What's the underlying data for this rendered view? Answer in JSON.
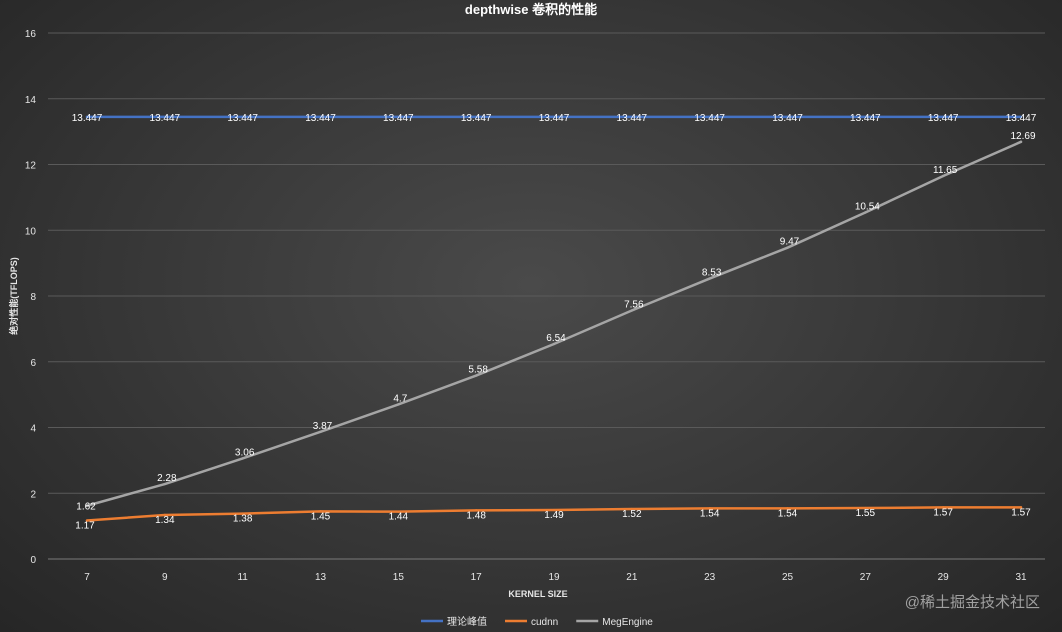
{
  "chart_data": {
    "type": "line",
    "title": "depthwise 卷积的性能",
    "xlabel": "KERNEL SIZE",
    "ylabel": "绝对性能(TFLOPS)",
    "categories": [
      "7",
      "9",
      "11",
      "13",
      "15",
      "17",
      "19",
      "21",
      "23",
      "25",
      "27",
      "29",
      "31"
    ],
    "ylim": [
      0,
      16
    ],
    "yticks": [
      0,
      2,
      4,
      6,
      8,
      10,
      12,
      14,
      16
    ],
    "grid": true,
    "legend_position": "bottom",
    "series": [
      {
        "name": "理论峰值",
        "color": "#4472c4",
        "values": [
          13.447,
          13.447,
          13.447,
          13.447,
          13.447,
          13.447,
          13.447,
          13.447,
          13.447,
          13.447,
          13.447,
          13.447,
          13.447
        ],
        "labels": [
          "13.447",
          "13.447",
          "13.447",
          "13.447",
          "13.447",
          "13.447",
          "13.447",
          "13.447",
          "13.447",
          "13.447",
          "13.447",
          "13.447",
          "13.447"
        ]
      },
      {
        "name": "cudnn",
        "color": "#ed7d31",
        "values": [
          1.17,
          1.34,
          1.38,
          1.45,
          1.44,
          1.48,
          1.49,
          1.52,
          1.54,
          1.54,
          1.55,
          1.57,
          1.57
        ],
        "labels": [
          "1.17",
          "1.34",
          "1.38",
          "1.45",
          "1.44",
          "1.48",
          "1.49",
          "1.52",
          "1.54",
          "1.54",
          "1.55",
          "1.57",
          "1.57"
        ]
      },
      {
        "name": "MegEngine",
        "color": "#a5a5a5",
        "values": [
          1.62,
          2.28,
          3.06,
          3.87,
          4.7,
          5.58,
          6.54,
          7.56,
          8.53,
          9.47,
          10.54,
          11.65,
          12.69
        ],
        "labels": [
          "1.62",
          "2.28",
          "3.06",
          "3.87",
          "4.7",
          "5.58",
          "6.54",
          "7.56",
          "8.53",
          "9.47",
          "10.54",
          "11.65",
          "12.69"
        ]
      }
    ]
  },
  "watermark": "@稀土掘金技术社区"
}
